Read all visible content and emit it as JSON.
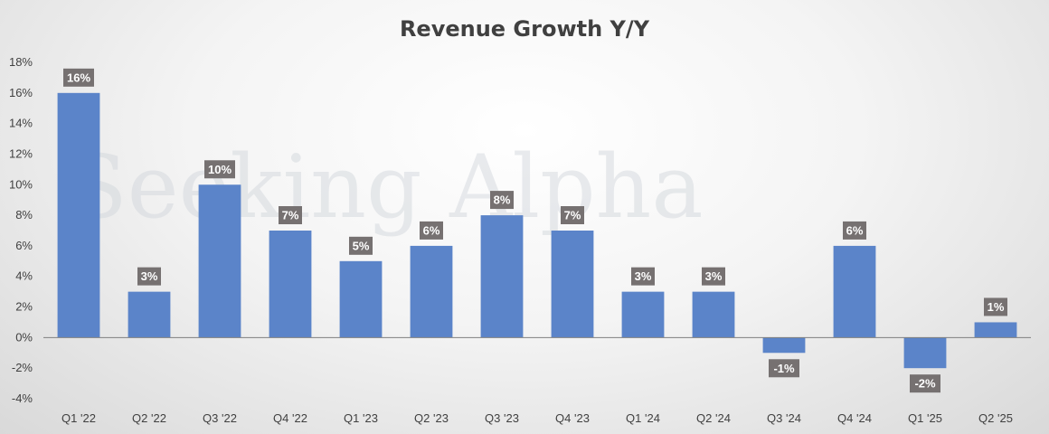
{
  "chart_data": {
    "type": "bar",
    "title": "Revenue Growth Y/Y",
    "categories": [
      "Q1 '22",
      "Q2 '22",
      "Q3 '22",
      "Q4 '22",
      "Q1 '23",
      "Q2 '23",
      "Q3 '23",
      "Q4 '23",
      "Q1 '24",
      "Q2 '24",
      "Q3 '24",
      "Q4 '24",
      "Q1 '25",
      "Q2 '25"
    ],
    "values": [
      16,
      3,
      10,
      7,
      5,
      6,
      8,
      7,
      3,
      3,
      -1,
      6,
      -2,
      1
    ],
    "data_labels": [
      "16%",
      "3%",
      "10%",
      "7%",
      "5%",
      "6%",
      "8%",
      "7%",
      "3%",
      "3%",
      "-1%",
      "6%",
      "-2%",
      "1%"
    ],
    "yticks": [
      "18%",
      "16%",
      "14%",
      "12%",
      "10%",
      "8%",
      "6%",
      "4%",
      "2%",
      "0%",
      "-2%",
      "-4%"
    ],
    "ylim": [
      -4,
      18
    ],
    "xlabel": "",
    "ylabel": "",
    "grid": false,
    "legend": "none",
    "bar_color": "#5b84c9",
    "label_bg_color": "#767171",
    "watermark": "Seeking Alpha"
  }
}
